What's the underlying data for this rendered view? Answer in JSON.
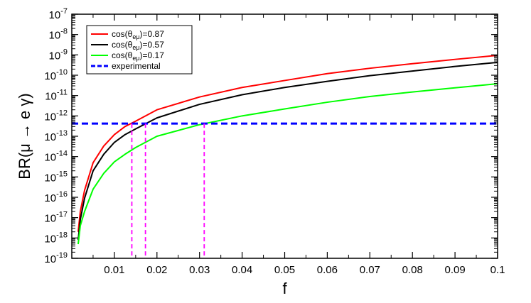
{
  "chart_data": {
    "type": "line",
    "xlabel": "f",
    "ylabel": "BR(μ → e γ)",
    "xlim": [
      0,
      0.1
    ],
    "ylim_exponents": [
      -19,
      -7
    ],
    "yscale": "log",
    "x_ticks": [
      "0.01",
      "0.02",
      "0.03",
      "0.04",
      "0.05",
      "0.06",
      "0.07",
      "0.08",
      "0.09",
      "0.1"
    ],
    "x_tick_values": [
      0.01,
      0.02,
      0.03,
      0.04,
      0.05,
      0.06,
      0.07,
      0.08,
      0.09,
      0.1
    ],
    "y_tick_exponents": [
      -19,
      -18,
      -17,
      -16,
      -15,
      -14,
      -13,
      -12,
      -11,
      -10,
      -9,
      -8,
      -7
    ],
    "y_tick_base": "10",
    "legend_position": "top-left",
    "series": [
      {
        "name": "cos(θeμ)=0.87",
        "label_main": "cos(θ",
        "label_sub": "eμ",
        "label_end": ")=0.87",
        "color": "#ff0000",
        "style": "solid",
        "x": [
          0.0015,
          0.002,
          0.003,
          0.005,
          0.0075,
          0.01,
          0.0125,
          0.015,
          0.02,
          0.03,
          0.04,
          0.05,
          0.06,
          0.07,
          0.08,
          0.09,
          0.1
        ],
        "y": [
          2e-18,
          2e-17,
          2.2e-16,
          5e-15,
          3.3e-14,
          1.2e-13,
          3e-13,
          5.5e-13,
          2e-12,
          8.5e-12,
          2.5e-11,
          5.5e-11,
          1.2e-10,
          2.2e-10,
          3.7e-10,
          6e-10,
          9.5e-10
        ]
      },
      {
        "name": "cos(θeμ)=0.57",
        "label_main": "cos(θ",
        "label_sub": "eμ",
        "label_end": ")=0.57",
        "color": "#000000",
        "style": "solid",
        "x": [
          0.0015,
          0.002,
          0.003,
          0.005,
          0.0075,
          0.01,
          0.0125,
          0.015,
          0.02,
          0.03,
          0.04,
          0.05,
          0.06,
          0.07,
          0.08,
          0.09,
          0.1
        ],
        "y": [
          8e-19,
          8e-18,
          9e-17,
          2e-15,
          1.3e-14,
          5e-14,
          1.2e-13,
          2.3e-13,
          8e-13,
          3.7e-12,
          1.1e-11,
          2.5e-11,
          5e-11,
          9.5e-11,
          1.6e-10,
          2.7e-10,
          4.3e-10
        ]
      },
      {
        "name": "cos(θeμ)=0.17",
        "label_main": "cos(θ",
        "label_sub": "eμ",
        "label_end": ")=0.17",
        "color": "#00ff00",
        "style": "solid",
        "x": [
          0.0015,
          0.002,
          0.003,
          0.005,
          0.0075,
          0.01,
          0.0125,
          0.015,
          0.02,
          0.03,
          0.04,
          0.05,
          0.06,
          0.07,
          0.08,
          0.09,
          0.1
        ],
        "y": [
          5e-19,
          4e-18,
          2e-17,
          2.5e-16,
          1.5e-15,
          5.5e-15,
          1.3e-14,
          2.8e-14,
          1e-13,
          3.7e-13,
          1e-12,
          2.2e-12,
          4.7e-12,
          9e-12,
          1.5e-11,
          2.4e-11,
          3.8e-11
        ]
      },
      {
        "name": "experimental",
        "color": "#0000ff",
        "style": "dashed",
        "x": [
          0,
          0.1
        ],
        "y": [
          4.2e-13,
          4.2e-13
        ]
      }
    ],
    "guides": {
      "color": "#ff00ff",
      "style": "dashed",
      "x": [
        0.0141,
        0.0173,
        0.0311
      ],
      "y_top": 4.2e-13
    }
  }
}
